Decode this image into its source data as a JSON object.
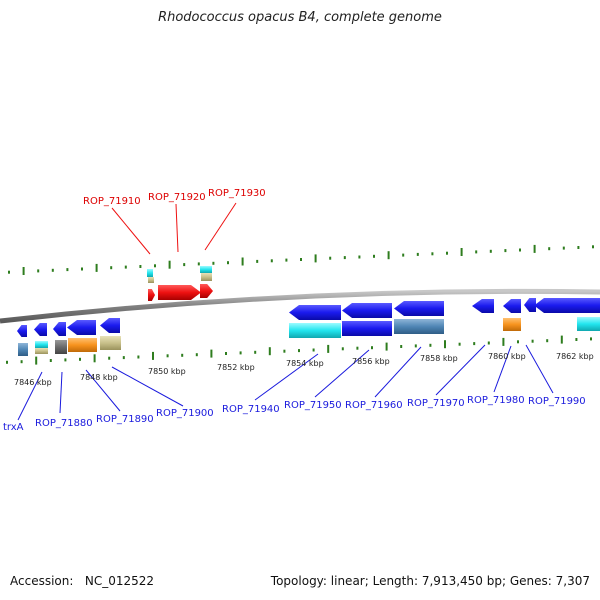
{
  "title": "Rhodococcus opacus B4, complete genome",
  "footer": {
    "accession_label": "Accession:",
    "accession": "NC_012522",
    "topology_label": "Topology:",
    "topology": "linear",
    "length_label": "Length:",
    "length": "7,913,450 bp",
    "genes_label": "Genes:",
    "genes": "7,307"
  },
  "colors": {
    "backbone": "#7f7f7f",
    "tick": "#2e7d1e",
    "gene_arrow": "#1a1aee",
    "cyan": "#22e5ee",
    "steel": "#4f86b5",
    "orange": "#f7931e",
    "khaki": "#c8c08a",
    "gray": "#6b6b6b",
    "red": "#ee1111",
    "label_red": "#dd0000",
    "label_blue": "#1a1add"
  },
  "ruler": {
    "unit": "kbp",
    "ticks": [
      "7846 kbp",
      "7848 kbp",
      "7850 kbp",
      "7852 kbp",
      "7854 kbp",
      "7856 kbp",
      "7858 kbp",
      "7860 kbp",
      "7862 kbp"
    ]
  },
  "labels_above": [
    "ROP_71910",
    "ROP_71920",
    "ROP_71930"
  ],
  "labels_below": [
    "trxA",
    "ROP_71880",
    "ROP_71890",
    "ROP_71900",
    "ROP_71940",
    "ROP_71950",
    "ROP_71960",
    "ROP_71970",
    "ROP_71980",
    "ROP_71990"
  ]
}
